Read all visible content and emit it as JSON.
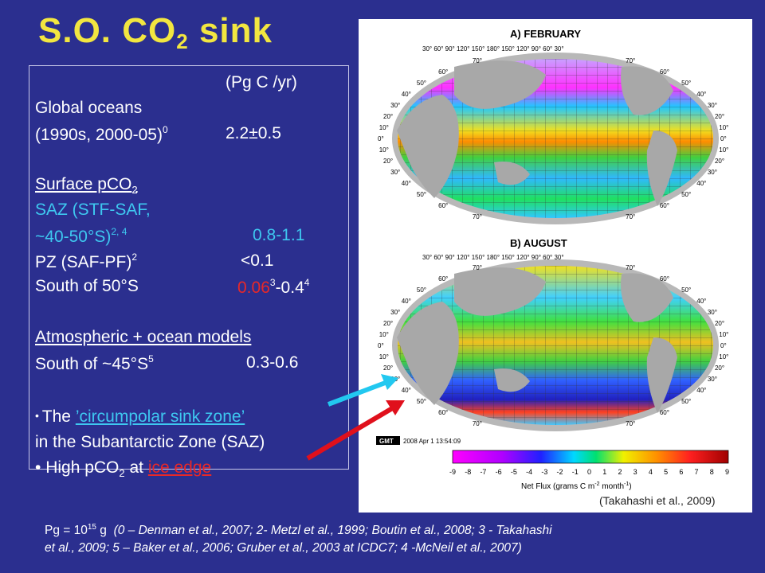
{
  "title": {
    "main": "S.O. CO",
    "sub": "2",
    "rest": " sink"
  },
  "units": "(Pg C /yr)",
  "global": {
    "label": "Global oceans",
    "period": "(1990s, 2000-05)",
    "period_ref": "0",
    "value": "2.2±0.5"
  },
  "surface": {
    "heading": "Surface pCO",
    "heading_sub": "2",
    "saz_label1": "SAZ (STF-SAF,",
    "saz_label2": "~40-50°S)",
    "saz_ref": "2, 4",
    "saz_value": "0.8-1.1",
    "pz_label": "PZ (SAF-PF)",
    "pz_ref": "2",
    "pz_value": "<0.1",
    "s50_label": "South of 50°S",
    "s50_value_a": "0.06",
    "s50_ref_a": "3",
    "s50_value_b": "-0.4",
    "s50_ref_b": "4"
  },
  "models": {
    "heading": "Atmospheric + ocean models",
    "label": "South of ~45°S",
    "ref": "5",
    "value": "0.3-0.6"
  },
  "bullets": {
    "b1_prefix": "The ",
    "b1_link": "’circumpolar sink zone’",
    "b1_line2": "in the Subantarctic Zone (SAZ)",
    "b2_prefix": "High pCO",
    "b2_sub": "2",
    "b2_mid": " at ",
    "b2_link": "ice edge"
  },
  "figure": {
    "panel_a": "A)  FEBRUARY",
    "panel_b": "B) AUGUST",
    "lon_labels": "30° 60° 90° 120° 150° 180° 150° 120° 90° 60° 30°",
    "lat_labels": [
      "70°",
      "60°",
      "50°",
      "40°",
      "30°",
      "20°",
      "10°",
      "0°",
      "10°",
      "20°",
      "30°",
      "40°",
      "50°",
      "60°",
      "70°"
    ],
    "gmt_stamp": "2008 Apr 1 13:54:09",
    "gmt_logo": "GMT",
    "colorbar_ticks": [
      "-9",
      "-8",
      "-7",
      "-6",
      "-5",
      "-4",
      "-3",
      "-2",
      "-1",
      "0",
      "1",
      "2",
      "3",
      "4",
      "5",
      "6",
      "7",
      "8",
      "9"
    ],
    "colorbar_label": "Net Flux (grams C m",
    "colorbar_label_sup1": "-2",
    "colorbar_label_mid": " month",
    "colorbar_label_sup2": "-1",
    "colorbar_label_end": ")",
    "credit": "(Takahashi et al., 2009)"
  },
  "footnote": {
    "pg": "Pg = 10",
    "pg_exp": "15",
    "pg_unit": " g",
    "refs1": "(0 – Denman et al., 2007; 2- Metzl et al., 1999; Boutin et al., 2008; 3 - Takahashi",
    "refs2": "et al., 2009; 5 – Baker et al., 2006; Gruber et al., 2003 at ICDC7; 4 -McNeil et al., 2007)"
  },
  "colors": {
    "title": "#f2e640",
    "background": "#2b2f8f",
    "cyan": "#3ec8f0",
    "red": "#e82828",
    "arrow_cyan": "#22c8f0",
    "arrow_red": "#e0101c"
  }
}
